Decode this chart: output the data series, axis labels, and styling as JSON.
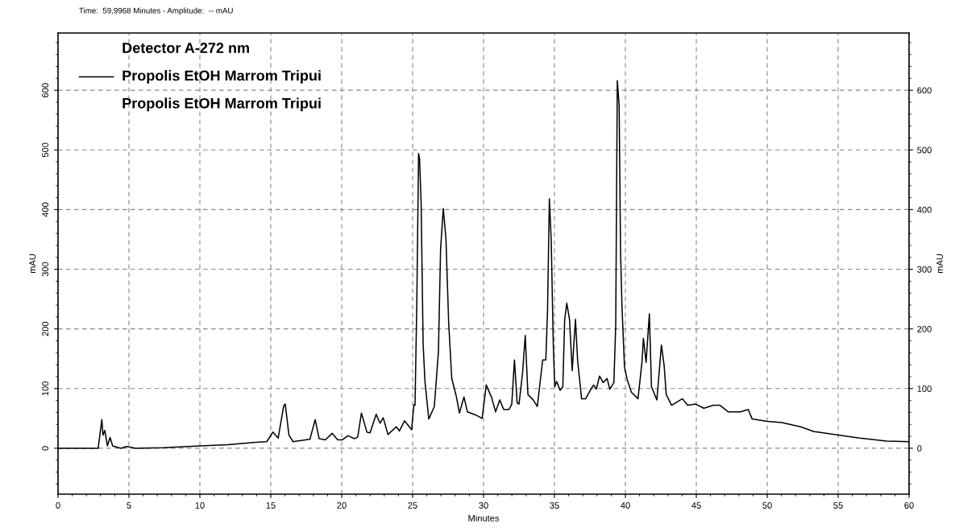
{
  "chart_data": {
    "type": "line",
    "xlabel": "Minutes",
    "ylabel": "mAU",
    "y2label": "mAU",
    "legend_title": "Detector A-272 nm",
    "legend": "top left",
    "grid": true,
    "line_style": "solid",
    "marker": "none",
    "annotations": [
      "Time:  59,9968 Minutes - Amplitude:  -- mAU",
      "Propolis EtOH Marrom Tripui"
    ],
    "xlim": [
      0,
      60
    ],
    "xticks": [
      0,
      5,
      10,
      15,
      20,
      25,
      30,
      35,
      40,
      45,
      50,
      55,
      60
    ],
    "ylim": [
      -77,
      696
    ],
    "yticks": [
      0,
      100,
      200,
      300,
      400,
      500,
      600
    ],
    "y2lim": [
      -77,
      696
    ],
    "y2ticks": [
      0,
      100,
      200,
      300,
      400,
      500,
      600
    ],
    "series": [
      {
        "name": "Propolis EtOH Marrom Tripui",
        "color": "#000000",
        "x": [
          0,
          2.83,
          3.09,
          3.17,
          3.3,
          3.48,
          3.67,
          3.85,
          4.43,
          4.83,
          5.48,
          7.43,
          10.04,
          12.0,
          13.96,
          14.72,
          15.15,
          15.52,
          15.91,
          16.02,
          16.28,
          16.57,
          17.76,
          18.13,
          18.41,
          18.85,
          19.33,
          19.72,
          20.04,
          20.43,
          20.91,
          21.13,
          21.39,
          21.78,
          22.0,
          22.43,
          22.7,
          22.93,
          23.26,
          23.85,
          24.07,
          24.43,
          24.93,
          25.09,
          25.17,
          25.3,
          25.42,
          25.49,
          25.6,
          25.74,
          25.87,
          26.14,
          26.53,
          26.82,
          26.97,
          27.16,
          27.35,
          27.54,
          27.76,
          28.07,
          28.3,
          28.62,
          28.86,
          29.43,
          29.9,
          30.19,
          30.57,
          30.85,
          31.14,
          31.42,
          31.8,
          31.99,
          32.18,
          32.37,
          32.5,
          32.75,
          32.94,
          33.13,
          33.5,
          33.79,
          34.17,
          34.39,
          34.51,
          34.64,
          34.77,
          34.92,
          35.02,
          35.15,
          35.4,
          35.59,
          35.72,
          35.87,
          36.06,
          36.25,
          36.48,
          36.63,
          36.91,
          37.2,
          37.57,
          37.76,
          37.95,
          38.18,
          38.43,
          38.71,
          38.9,
          39.19,
          39.32,
          39.43,
          39.56,
          39.66,
          39.76,
          39.94,
          40.13,
          40.42,
          40.89,
          41.17,
          41.27,
          41.46,
          41.69,
          41.84,
          42.22,
          42.54,
          42.73,
          42.88,
          43.26,
          44.02,
          44.39,
          44.96,
          45.53,
          46.2,
          46.67,
          47.25,
          48.1,
          48.66,
          48.94,
          49.99,
          51.02,
          52.35,
          53.3,
          55.0,
          56.5,
          58.4,
          59.97
        ],
        "values": [
          0,
          0,
          48,
          22,
          30,
          4,
          18,
          4,
          0,
          3,
          0,
          1,
          4,
          6,
          10,
          11,
          27,
          17,
          71,
          74,
          22,
          11,
          15,
          48,
          16,
          14,
          25,
          14,
          14,
          21,
          16,
          19,
          59,
          27,
          26,
          57,
          42,
          51,
          23,
          36,
          29,
          46,
          31,
          73,
          72,
          252,
          494,
          485,
          411,
          175,
          112,
          49,
          70,
          162,
          333,
          402,
          351,
          211,
          117,
          88,
          59,
          86,
          61,
          56,
          50,
          106,
          85,
          61,
          81,
          65,
          65,
          74,
          148,
          76,
          74,
          126,
          189,
          90,
          81,
          70,
          148,
          148,
          229,
          418,
          350,
          171,
          103,
          112,
          97,
          103,
          216,
          243,
          216,
          130,
          216,
          148,
          83,
          83,
          99,
          106,
          99,
          121,
          110,
          117,
          99,
          110,
          207,
          616,
          575,
          328,
          238,
          135,
          115,
          94,
          83,
          144,
          184,
          144,
          225,
          103,
          81,
          173,
          139,
          90,
          72,
          83,
          72,
          74,
          67,
          72,
          72,
          61,
          61,
          65,
          49,
          45,
          43,
          36,
          28,
          22,
          17,
          12,
          11
        ]
      }
    ]
  }
}
